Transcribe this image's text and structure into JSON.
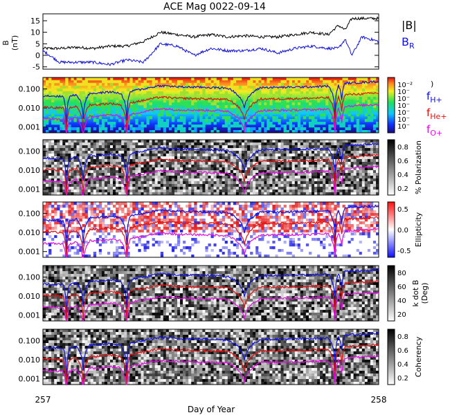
{
  "title": "ACE Mag 0022-09-14",
  "xlabel": "Day of Year",
  "x_ticks": [
    257,
    258
  ],
  "colors": {
    "black": "#000000",
    "blue": "#1010e0",
    "red": "#e01010",
    "magenta": "#e010e0"
  },
  "chart_data": [
    {
      "type": "line",
      "panel": "field",
      "ylabel_main": "B",
      "ylabel_unit": "(nT)",
      "ylim": [
        -6,
        18
      ],
      "yticks": [
        -5,
        0,
        5,
        10,
        15
      ],
      "x": [
        257.0,
        257.05,
        257.1,
        257.15,
        257.2,
        257.25,
        257.3,
        257.35,
        257.4,
        257.45,
        257.5,
        257.55,
        257.6,
        257.65,
        257.7,
        257.75,
        257.8,
        257.85,
        257.88,
        257.9,
        257.92,
        257.95,
        258.0
      ],
      "series": [
        {
          "name": "|B|",
          "color": "#000000",
          "values": [
            3,
            3,
            3.5,
            3,
            4,
            4,
            6,
            10,
            9,
            8,
            9,
            8,
            8.5,
            8,
            8,
            9,
            10,
            9,
            13,
            11,
            16,
            16,
            16
          ]
        },
        {
          "name": "B_R",
          "color": "#1010e0",
          "values": [
            2,
            -3,
            -3,
            -3,
            -4,
            -2,
            -3,
            5,
            4,
            0,
            3,
            2,
            2,
            3,
            1,
            3,
            4,
            3,
            3,
            7,
            0,
            8,
            6
          ]
        }
      ]
    },
    {
      "type": "heatmap",
      "panel": "power",
      "ylog": true,
      "ylim": [
        0.0005,
        0.4
      ],
      "yticks": [
        "0.100",
        "0.010",
        "0.001"
      ],
      "colorbar_ticks": [
        "10⁻²",
        "10⁻",
        "10⁻",
        "10⁻",
        "10⁻",
        "10⁻",
        "10⁻"
      ],
      "colorbar_top_symbol": ")",
      "overlay_legend": [
        "f_H+",
        "f_He+",
        "f_O+"
      ]
    },
    {
      "type": "heatmap",
      "panel": "polarization",
      "ylog": true,
      "ylim": [
        0.0005,
        0.4
      ],
      "yticks": [
        "0.100",
        "0.010",
        "0.001"
      ],
      "colorbar_label": "% Polarization",
      "colorbar_ticks": [
        "0.8",
        "0.6",
        "0.4",
        "0.2"
      ]
    },
    {
      "type": "heatmap",
      "panel": "ellipticity",
      "ylog": true,
      "ylim": [
        0.0005,
        0.4
      ],
      "yticks": [
        "0.100",
        "0.010",
        "0.001"
      ],
      "colorbar_label": "Ellipticity",
      "colorbar_ticks": [
        "0.5",
        "0.0",
        "-0.5"
      ]
    },
    {
      "type": "heatmap",
      "panel": "kdotb",
      "ylog": true,
      "ylim": [
        0.0005,
        0.4
      ],
      "yticks": [
        "0.100",
        "0.010",
        "0.001"
      ],
      "colorbar_label": "k dot B",
      "colorbar_unit": "(Deg)",
      "colorbar_ticks": [
        "80",
        "60",
        "40",
        "20"
      ]
    },
    {
      "type": "heatmap",
      "panel": "coherency",
      "ylog": true,
      "ylim": [
        0.0005,
        0.4
      ],
      "yticks": [
        "0.100",
        "0.010",
        "0.001"
      ],
      "colorbar_label": "Coherency",
      "colorbar_ticks": [
        "0.8",
        "0.6",
        "0.4",
        "0.2"
      ]
    }
  ],
  "gyrofrequency": {
    "x": [
      257.0,
      257.06,
      257.07,
      257.08,
      257.1,
      257.12,
      257.14,
      257.16,
      257.2,
      257.23,
      257.25,
      257.26,
      257.28,
      257.3,
      257.35,
      257.4,
      257.5,
      257.55,
      257.6,
      257.65,
      257.7,
      257.8,
      257.85,
      257.87,
      257.88,
      257.89,
      257.9,
      257.95,
      258.0
    ],
    "f_H": [
      0.045,
      0.04,
      0.0008,
      0.04,
      0.05,
      0.003,
      0.06,
      0.06,
      0.07,
      0.06,
      0.002,
      0.07,
      0.09,
      0.1,
      0.15,
      0.13,
      0.12,
      0.11,
      0.01,
      0.12,
      0.12,
      0.13,
      0.14,
      0.003,
      0.15,
      0.03,
      0.2,
      0.22,
      0.25
    ]
  }
}
